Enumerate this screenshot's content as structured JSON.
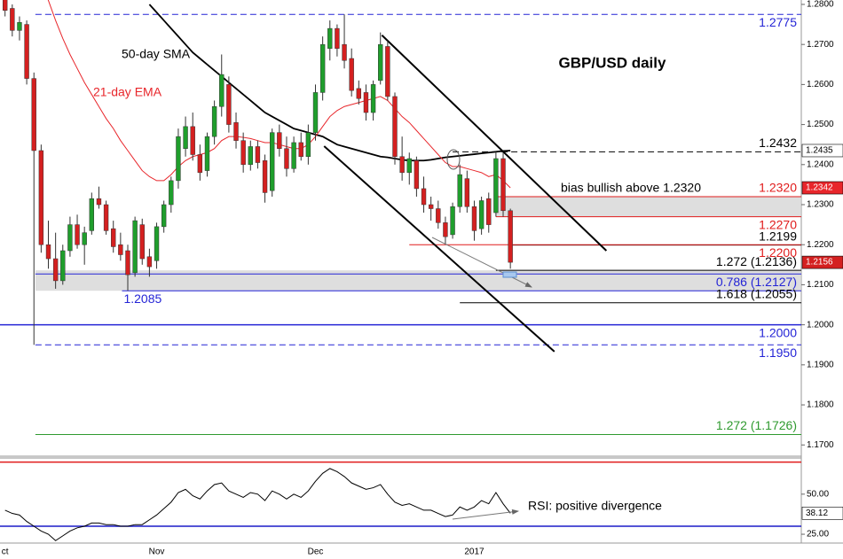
{
  "chart_data": {
    "type": "candlestick",
    "title": "GBP/USD daily",
    "categories": [
      "ct",
      null,
      null,
      null,
      null,
      null,
      null,
      null,
      null,
      null,
      null,
      null,
      null,
      null,
      null,
      null,
      null,
      null,
      null,
      null,
      null,
      "Nov",
      null,
      null,
      null,
      null,
      null,
      null,
      null,
      null,
      null,
      null,
      null,
      null,
      null,
      null,
      null,
      null,
      null,
      null,
      null,
      null,
      null,
      "Dec",
      null,
      null,
      null,
      null,
      null,
      null,
      null,
      null,
      null,
      null,
      null,
      null,
      null,
      null,
      null,
      null,
      null,
      null,
      null,
      null,
      null,
      "2017",
      null,
      null,
      null,
      null,
      null
    ],
    "open": [
      1.286,
      1.279,
      1.2735,
      1.275,
      1.2615,
      1.2435,
      1.22,
      1.2165,
      1.211,
      1.2185,
      1.225,
      1.22,
      1.2235,
      1.2315,
      1.23,
      1.224,
      1.22,
      1.2185,
      1.213,
      1.225,
      1.217,
      1.216,
      1.2245,
      1.23,
      1.236,
      1.244,
      1.2495,
      1.2425,
      1.2385,
      1.247,
      1.2545,
      1.26,
      1.2505,
      1.246,
      1.24,
      1.2445,
      1.241,
      1.2335,
      1.248,
      1.244,
      1.239,
      1.2455,
      1.242,
      1.248,
      1.258,
      1.269,
      1.274,
      1.27,
      1.2665,
      1.259,
      1.258,
      1.253,
      1.261,
      1.2695,
      1.257,
      1.242,
      1.238,
      1.241,
      1.234,
      1.23,
      1.229,
      1.2255,
      1.2225,
      1.2295,
      1.2365,
      1.2295,
      1.224,
      1.2315,
      1.228,
      1.2415,
      1.2285
    ],
    "high": [
      1.288,
      1.28,
      1.277,
      1.276,
      1.263,
      1.245,
      1.226,
      1.223,
      1.22,
      1.227,
      1.2275,
      1.2245,
      1.233,
      1.2345,
      1.231,
      1.226,
      1.223,
      1.22,
      1.227,
      1.2265,
      1.219,
      1.2255,
      1.231,
      1.237,
      1.249,
      1.252,
      1.253,
      1.245,
      1.248,
      1.256,
      1.2675,
      1.262,
      1.253,
      1.248,
      1.246,
      1.246,
      1.2425,
      1.249,
      1.25,
      1.247,
      1.247,
      1.248,
      1.25,
      1.26,
      1.272,
      1.276,
      1.275,
      1.2775,
      1.269,
      1.261,
      1.26,
      1.261,
      1.273,
      1.271,
      1.258,
      1.247,
      1.243,
      1.242,
      1.237,
      1.232,
      1.231,
      1.227,
      1.2305,
      1.24,
      1.2385,
      1.231,
      1.232,
      1.233,
      1.2432,
      1.243,
      1.229
    ],
    "low": [
      1.277,
      1.272,
      1.271,
      1.26,
      1.195,
      1.218,
      1.214,
      1.209,
      1.21,
      1.217,
      1.219,
      1.215,
      1.2225,
      1.229,
      1.2225,
      1.218,
      1.216,
      1.2085,
      1.212,
      1.215,
      1.212,
      1.214,
      1.223,
      1.228,
      1.234,
      1.242,
      1.241,
      1.236,
      1.237,
      1.245,
      1.252,
      1.248,
      1.244,
      1.238,
      1.2385,
      1.239,
      1.2305,
      1.232,
      1.242,
      1.237,
      1.238,
      1.241,
      1.24,
      1.246,
      1.256,
      1.266,
      1.267,
      1.264,
      1.257,
      1.255,
      1.251,
      1.251,
      1.26,
      1.256,
      1.24,
      1.236,
      1.235,
      1.232,
      1.228,
      1.226,
      1.224,
      1.22,
      1.2215,
      1.228,
      1.228,
      1.221,
      1.2225,
      1.223,
      1.227,
      1.227,
      1.214
    ],
    "close": [
      1.2785,
      1.2735,
      1.2755,
      1.2615,
      1.2435,
      1.22,
      1.2165,
      1.211,
      1.2185,
      1.225,
      1.22,
      1.223,
      1.2315,
      1.23,
      1.2235,
      1.2195,
      1.2175,
      1.2125,
      1.226,
      1.2165,
      1.2145,
      1.2245,
      1.23,
      1.236,
      1.247,
      1.2495,
      1.2425,
      1.238,
      1.247,
      1.2545,
      1.2625,
      1.25,
      1.246,
      1.24,
      1.2445,
      1.2405,
      1.233,
      1.248,
      1.244,
      1.239,
      1.2455,
      1.242,
      1.248,
      1.258,
      1.27,
      1.274,
      1.269,
      1.266,
      1.2585,
      1.2565,
      1.253,
      1.26,
      1.27,
      1.257,
      1.242,
      1.238,
      1.2415,
      1.234,
      1.23,
      1.229,
      1.2255,
      1.222,
      1.2295,
      1.2375,
      1.2295,
      1.2235,
      1.231,
      1.225,
      1.2415,
      1.2285,
      1.2156
    ],
    "up_color": "#1f9e2c",
    "down_color": "#d42020",
    "xlim": [
      -0.7,
      110.3
    ],
    "ylim": [
      1.1674,
      1.2811
    ],
    "yticks": [
      {
        "value": 1.28,
        "label": "1.2800"
      },
      {
        "value": 1.27,
        "label": "1.2700"
      },
      {
        "value": 1.26,
        "label": "1.2600"
      },
      {
        "value": 1.25,
        "label": "1.2500"
      },
      {
        "value": 1.24,
        "label": "1.2400"
      },
      {
        "value": 1.23,
        "label": "1.2300"
      },
      {
        "value": 1.22,
        "label": "1.2200"
      },
      {
        "value": 1.21,
        "label": "1.2100"
      },
      {
        "value": 1.2,
        "label": "1.2000"
      },
      {
        "value": 1.19,
        "label": "1.1900"
      },
      {
        "value": 1.18,
        "label": "1.1800"
      },
      {
        "value": 1.17,
        "label": "1.1700"
      }
    ],
    "series": [
      {
        "name": "50-day SMA",
        "color": "#000000",
        "values": [
          null,
          null,
          null,
          null,
          null,
          null,
          null,
          null,
          null,
          null,
          null,
          null,
          null,
          null,
          null,
          null,
          null,
          null,
          null,
          null,
          1.28,
          1.278,
          1.276,
          1.274,
          1.272,
          1.27,
          1.268,
          1.2665,
          1.265,
          1.2635,
          1.262,
          1.2605,
          1.259,
          1.2575,
          1.256,
          1.2545,
          1.253,
          1.252,
          1.251,
          1.25,
          1.249,
          1.2485,
          1.248,
          1.2475,
          1.247,
          1.246,
          1.245,
          1.2445,
          1.244,
          1.2435,
          1.243,
          1.2425,
          1.242,
          1.2418,
          1.2415,
          1.2412,
          1.241,
          1.241,
          1.241,
          1.2412,
          1.2415,
          1.2418,
          1.242,
          1.2422,
          1.2424,
          1.2426,
          1.2428,
          1.243,
          1.2432,
          1.2434,
          1.2435
        ]
      },
      {
        "name": "21-day EMA",
        "color": "#e8262b",
        "values": [
          null,
          null,
          null,
          null,
          null,
          1.286,
          1.281,
          1.276,
          1.2715,
          1.2675,
          1.264,
          1.2605,
          1.2575,
          1.2545,
          1.2515,
          1.249,
          1.246,
          1.2435,
          1.241,
          1.2385,
          1.237,
          1.236,
          1.236,
          1.2375,
          1.2395,
          1.241,
          1.242,
          1.2425,
          1.243,
          1.244,
          1.246,
          1.247,
          1.247,
          1.2468,
          1.2465,
          1.246,
          1.2455,
          1.2455,
          1.245,
          1.2445,
          1.244,
          1.244,
          1.245,
          1.247,
          1.2495,
          1.252,
          1.2535,
          1.2545,
          1.255,
          1.2555,
          1.256,
          1.2565,
          1.257,
          1.256,
          1.254,
          1.252,
          1.2505,
          1.2485,
          1.2465,
          1.2445,
          1.2425,
          1.2405,
          1.2395,
          1.2395,
          1.239,
          1.2385,
          1.238,
          1.237,
          1.2375,
          1.236,
          1.2342
        ]
      }
    ],
    "levels": [
      {
        "value": 1.2775,
        "label": "1.2775",
        "color": "#2424d6",
        "style": "dashed",
        "from": 4.2,
        "label_pos": "below"
      },
      {
        "value": 1.2432,
        "label": "1.2432",
        "color": "#000000",
        "style": "dashed",
        "from": 62,
        "label_pos": "above"
      },
      {
        "value": 1.232,
        "label": "1.2320",
        "color": "#e01b1b",
        "style": "solid",
        "from": 68,
        "label_pos": "above"
      },
      {
        "value": 1.227,
        "label": "1.2270",
        "color": "#e01b1b",
        "style": "solid",
        "from": 68,
        "label_pos": "below"
      },
      {
        "value": 1.2199,
        "label": "1.2199",
        "color": "#000000",
        "style": "solid",
        "from": 70,
        "label_pos": "above"
      },
      {
        "value": 1.22,
        "label": "1.2200",
        "color": "#e01b1b",
        "style": "solid",
        "from": 56,
        "label_pos": "below"
      },
      {
        "value": 1.2136,
        "label": "1.272 (1.2136)",
        "color": "#000000",
        "style": "solid",
        "from": 68,
        "label_pos": "above"
      },
      {
        "value": 1.2127,
        "label": "0.786 (1.2127)",
        "color": "#2424d6",
        "style": "solid",
        "from": 4.2,
        "label_pos": "below"
      },
      {
        "value": 1.2085,
        "label": "1.2085",
        "color": "#2424d6",
        "style": "solid",
        "from": 16.2,
        "label_pos": "below",
        "label_at": "start"
      },
      {
        "value": 1.2055,
        "label": "1.618 (1.2055)",
        "color": "#000000",
        "style": "solid",
        "from": 63,
        "label_pos": "above"
      },
      {
        "value": 1.2,
        "label": "1.2000",
        "color": "#2424d6",
        "style": "solid",
        "from": -0.7,
        "label_pos": "below"
      },
      {
        "value": 1.195,
        "label": "1.1950",
        "color": "#2424d6",
        "style": "dashed",
        "from": 4.2,
        "label_pos": "below"
      },
      {
        "value": 1.1726,
        "label": "1.272 (1.1726)",
        "color": "#2f9a2f",
        "style": "solid",
        "from": 4.2,
        "label_pos": "above"
      }
    ],
    "zones": [
      {
        "from": 68,
        "low": 1.227,
        "high": 1.232
      },
      {
        "from": 4.2,
        "low": 1.2085,
        "high": 1.2136
      }
    ],
    "trendlines": [
      {
        "x": [
          52.2,
          83.3
        ],
        "y": [
          1.2723,
          1.2185
        ]
      },
      {
        "x": [
          44.2,
          76.1
        ],
        "y": [
          1.2446,
          1.1933
        ]
      }
    ],
    "annotations": [
      "bias bullish above 1.2320",
      "RSI: positive divergence"
    ],
    "rsi": {
      "color": "#000000",
      "values": [
        40,
        38,
        37,
        33,
        30,
        27,
        25,
        21,
        24,
        27,
        29,
        30,
        32,
        32,
        31,
        31,
        30,
        30,
        31,
        31,
        34,
        37,
        41,
        45,
        51,
        53,
        49,
        47,
        52,
        56,
        57,
        52,
        50,
        48,
        51,
        50,
        46,
        52,
        50,
        47,
        50,
        48,
        52,
        58,
        63,
        66,
        64,
        61,
        57,
        55,
        53,
        54,
        56,
        50,
        45,
        43,
        44,
        42,
        40,
        40,
        38,
        36,
        37,
        42,
        40,
        42,
        46,
        44,
        51,
        44,
        38.12
      ],
      "ylim": [
        19.5,
        72
      ],
      "yticks": [
        {
          "value": 50,
          "label": "50.00"
        },
        {
          "value": 25,
          "label": "25.00"
        }
      ],
      "levels": [
        {
          "value": 70,
          "color": "#e01b1b"
        },
        {
          "value": 30,
          "color": "#1c1cc8"
        }
      ]
    }
  }
}
